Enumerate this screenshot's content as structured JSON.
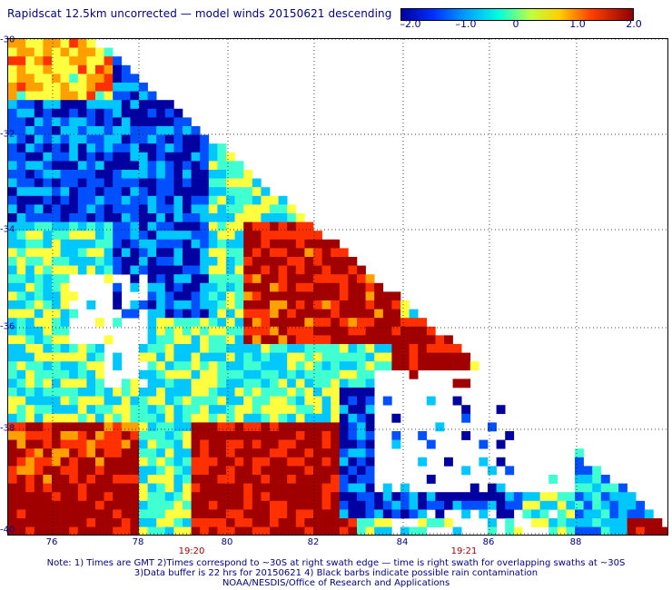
{
  "title": "Rapidscat 12.5km uncorrected — model winds 20150621 descending",
  "colorbar": {
    "ticks": [
      "–2.0",
      "–1.0",
      "0",
      "1.0",
      "2.0"
    ],
    "range": [
      -2.0,
      2.0
    ],
    "colors": [
      "#0000a0",
      "#0050ff",
      "#00c8ff",
      "#40ffd0",
      "#ffff40",
      "#ffa000",
      "#ff3000",
      "#a00000"
    ]
  },
  "map": {
    "lat_labels": [
      "-30",
      "-32",
      "-34",
      "-36",
      "-38",
      "-40"
    ],
    "lon_labels": [
      "76",
      "78",
      "80",
      "82",
      "84",
      "86",
      "88"
    ],
    "time_labels": [
      "19:20",
      "19:21"
    ],
    "lon_range": [
      75,
      89.5
    ],
    "lat_range": [
      -30,
      -40
    ]
  },
  "notes": [
    "Note: 1) Times are GMT 2)Times correspond to ~30S at right swath edge — time is right swath for overlapping swaths at ~30S",
    "3)Data buffer is 22 hrs for 20150621 4) Black barbs indicate possible rain contamination",
    "NOAA/NESDIS/Office of Research and Applications"
  ]
}
